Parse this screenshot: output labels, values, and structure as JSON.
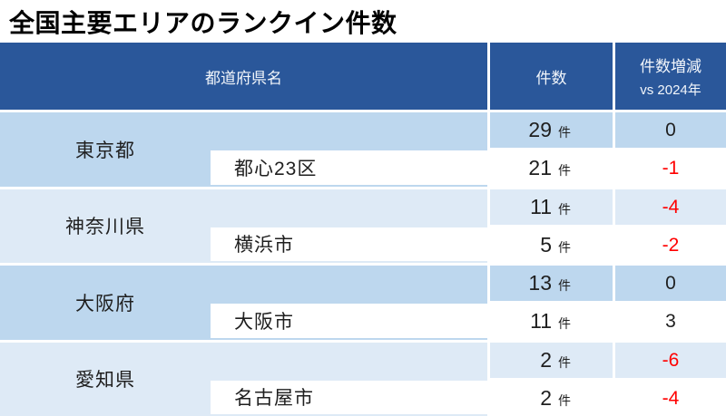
{
  "title": "全国主要エリアのランクイン件数",
  "header": {
    "prefecture": "都道府県名",
    "count": "件数",
    "change_line1": "件数増減",
    "change_line2": "vs 2024年"
  },
  "unit": "件",
  "colors": {
    "header_bg": "#2A579A",
    "header_text": "#F2F6FB",
    "group_strong_bg": "#BDD7EE",
    "group_light_bg": "#DEEAF6",
    "negative_text": "#FF0000",
    "body_text": "#1F1F1F"
  },
  "groups": [
    {
      "prefecture": "東京都",
      "bg": "#BDD7EE",
      "pref_count": "29",
      "pref_change": "0",
      "pref_change_color": "#1F1F1F",
      "sub_name": "都心23区",
      "sub_count": "21",
      "sub_change": "-1",
      "sub_change_color": "#FF0000"
    },
    {
      "prefecture": "神奈川県",
      "bg": "#DEEAF6",
      "pref_count": "11",
      "pref_change": "-4",
      "pref_change_color": "#FF0000",
      "sub_name": "横浜市",
      "sub_count": "5",
      "sub_change": "-2",
      "sub_change_color": "#FF0000"
    },
    {
      "prefecture": "大阪府",
      "bg": "#BDD7EE",
      "pref_count": "13",
      "pref_change": "0",
      "pref_change_color": "#1F1F1F",
      "sub_name": "大阪市",
      "sub_count": "11",
      "sub_change": "3",
      "sub_change_color": "#1F1F1F"
    },
    {
      "prefecture": "愛知県",
      "bg": "#DEEAF6",
      "pref_count": "2",
      "pref_change": "-6",
      "pref_change_color": "#FF0000",
      "sub_name": "名古屋市",
      "sub_count": "2",
      "sub_change": "-4",
      "sub_change_color": "#FF0000"
    }
  ],
  "chart_data": {
    "type": "table",
    "title": "全国主要エリアのランクイン件数",
    "columns": [
      "都道府県名",
      "件数",
      "件数増減 vs 2024年"
    ],
    "rows": [
      {
        "area": "東京都",
        "sub_area": null,
        "count": 29,
        "change": 0
      },
      {
        "area": "東京都",
        "sub_area": "都心23区",
        "count": 21,
        "change": -1
      },
      {
        "area": "神奈川県",
        "sub_area": null,
        "count": 11,
        "change": -4
      },
      {
        "area": "神奈川県",
        "sub_area": "横浜市",
        "count": 5,
        "change": -2
      },
      {
        "area": "大阪府",
        "sub_area": null,
        "count": 13,
        "change": 0
      },
      {
        "area": "大阪府",
        "sub_area": "大阪市",
        "count": 11,
        "change": 3
      },
      {
        "area": "愛知県",
        "sub_area": null,
        "count": 2,
        "change": -6
      },
      {
        "area": "愛知県",
        "sub_area": "名古屋市",
        "count": 2,
        "change": -4
      }
    ]
  }
}
